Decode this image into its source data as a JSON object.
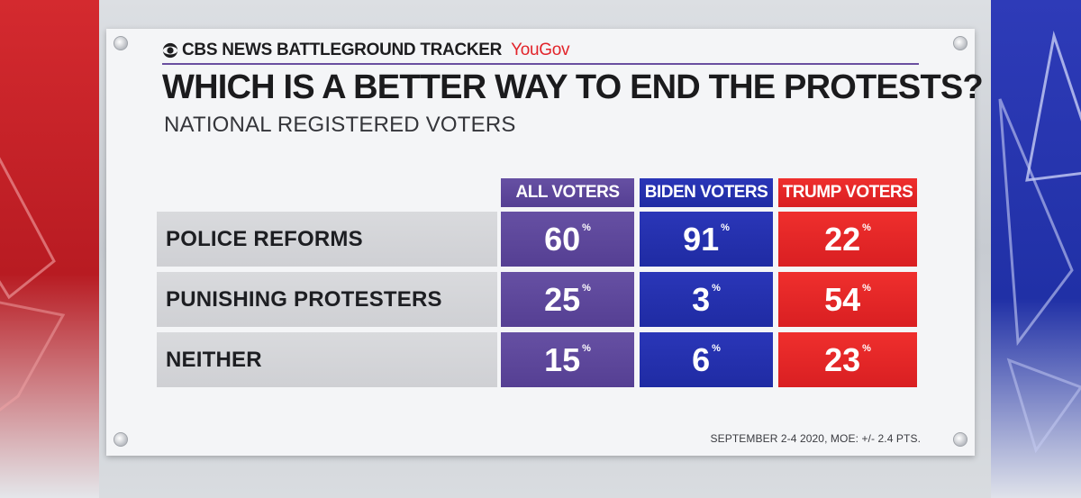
{
  "header": {
    "brand": "CBS NEWS BATTLEGROUND TRACKER",
    "partner": "YouGov"
  },
  "title": "WHICH IS A BETTER WAY TO END THE PROTESTS?",
  "subtitle": "NATIONAL REGISTERED VOTERS",
  "source": "SEPTEMBER 2-4 2020, MOE: +/- 2.4 PTS.",
  "colors": {
    "all_voters": "#5f4a9e",
    "biden_voters": "#2632b0",
    "trump_voters": "#e8282a",
    "row_label_bg": "#d4d5d9"
  },
  "chart_data": {
    "type": "table",
    "columns": [
      "ALL VOTERS",
      "BIDEN VOTERS",
      "TRUMP VOTERS"
    ],
    "rows": [
      {
        "label": "POLICE REFORMS",
        "values": [
          60,
          91,
          22
        ]
      },
      {
        "label": "PUNISHING PROTESTERS",
        "values": [
          25,
          3,
          54
        ]
      },
      {
        "label": "NEITHER",
        "values": [
          15,
          6,
          23
        ]
      }
    ],
    "unit": "%"
  },
  "icons": {
    "brand_logo": "cbs-eye-icon"
  }
}
